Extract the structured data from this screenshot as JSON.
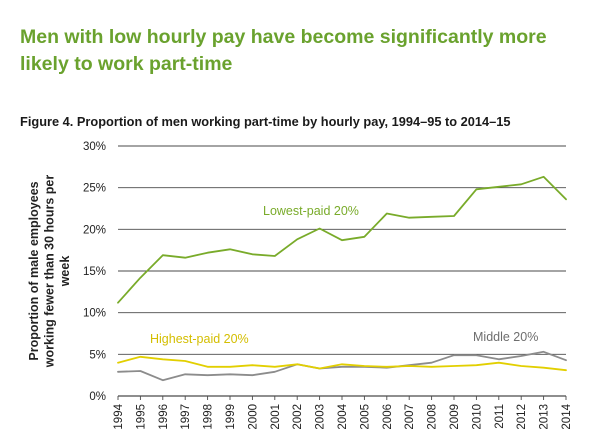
{
  "headline": "Men with low hourly pay have become significantly more likely to work part-time",
  "figure_title": "Figure 4. Proportion of men working part-time by hourly pay, 1994–95 to 2014–15",
  "colors": {
    "lowest": "#79ab2a",
    "highest": "#e2cf00",
    "middle": "#8c8c8c",
    "headline": "#6aa22e",
    "grid": "#4a4a4a"
  },
  "chart_data": {
    "type": "line",
    "ylabel_lines": [
      "Proportion of male employees",
      "working fewer than 30 hours per",
      "week"
    ],
    "xlabel": "",
    "x": [
      1994,
      1995,
      1996,
      1997,
      1998,
      1999,
      2000,
      2001,
      2002,
      2003,
      2004,
      2005,
      2006,
      2007,
      2008,
      2009,
      2010,
      2011,
      2012,
      2013,
      2014
    ],
    "x_tick_labels": [
      "1994",
      "1995",
      "1996",
      "1997",
      "1998",
      "1999",
      "2000",
      "2001",
      "2002",
      "2003",
      "2004",
      "2005",
      "2006",
      "2007",
      "2008",
      "2009",
      "2010",
      "2011",
      "2012",
      "2013",
      "2014"
    ],
    "ylim": [
      0,
      30
    ],
    "y_ticks": [
      0,
      5,
      10,
      15,
      20,
      25,
      30
    ],
    "y_tick_labels": [
      "0%",
      "5%",
      "10%",
      "15%",
      "20%",
      "25%",
      "30%"
    ],
    "grid": "horizontal",
    "series": [
      {
        "name": "Lowest-paid 20%",
        "color_key": "lowest",
        "values": [
          11.2,
          14.2,
          16.9,
          16.6,
          17.2,
          17.6,
          17.0,
          16.8,
          18.8,
          20.1,
          18.7,
          19.1,
          21.9,
          21.4,
          21.5,
          21.6,
          24.8,
          25.1,
          25.4,
          26.3,
          23.6
        ]
      },
      {
        "name": "Highest-paid 20%",
        "color_key": "highest",
        "values": [
          4.0,
          4.7,
          4.4,
          4.2,
          3.5,
          3.5,
          3.7,
          3.5,
          3.8,
          3.3,
          3.8,
          3.6,
          3.5,
          3.6,
          3.5,
          3.6,
          3.7,
          4.0,
          3.6,
          3.4,
          3.1
        ]
      },
      {
        "name": "Middle 20%",
        "color_key": "middle",
        "values": [
          2.9,
          3.0,
          1.9,
          2.6,
          2.5,
          2.6,
          2.5,
          2.9,
          3.8,
          3.3,
          3.5,
          3.5,
          3.4,
          3.7,
          4.0,
          4.9,
          4.9,
          4.4,
          4.8,
          5.3,
          4.3
        ]
      }
    ],
    "series_labels": [
      "Lowest-paid 20%",
      "Highest-paid 20%",
      "Middle 20%"
    ]
  }
}
